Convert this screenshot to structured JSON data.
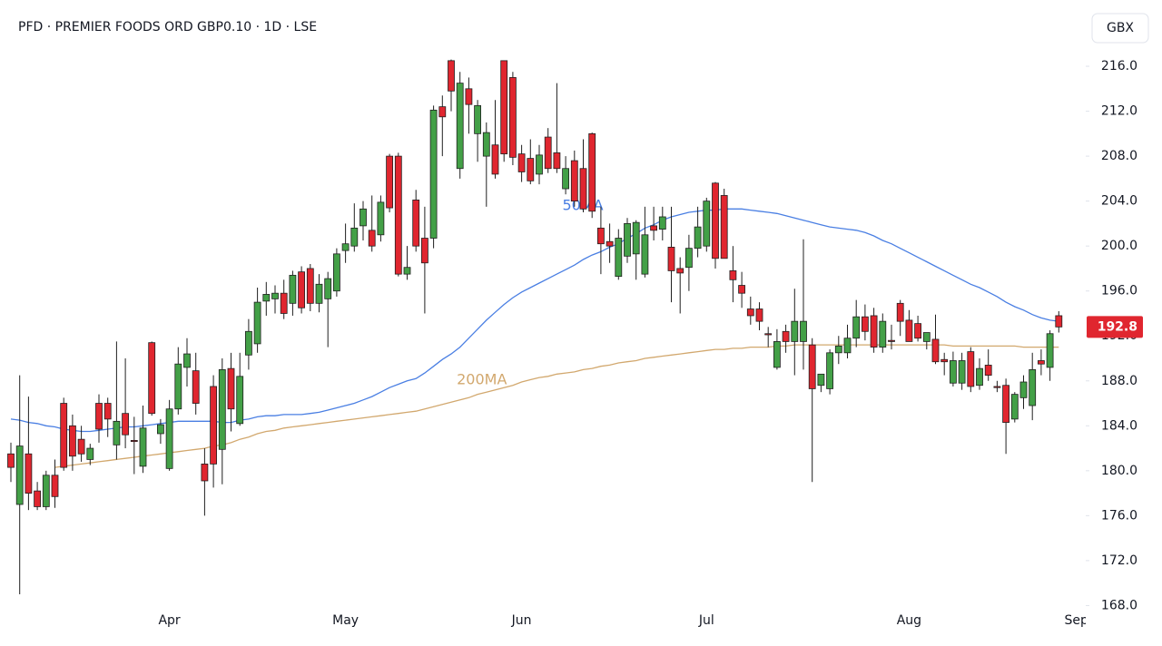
{
  "chart_data": {
    "type": "candlestick",
    "title": "PFD · PREMIER FOODS ORD GBP0.10 · 1D · LSE",
    "currency": "GBX",
    "up_color": "#43a047",
    "down_color": "#e0262f",
    "categories": [
      null,
      null,
      null,
      null,
      null,
      null,
      null,
      null,
      null,
      null,
      null,
      null,
      null,
      null,
      null,
      null,
      null,
      null,
      "Apr",
      null,
      null,
      null,
      null,
      null,
      null,
      null,
      null,
      null,
      null,
      null,
      null,
      null,
      null,
      null,
      null,
      null,
      null,
      null,
      "May",
      null,
      null,
      null,
      null,
      null,
      null,
      null,
      null,
      null,
      null,
      null,
      null,
      null,
      null,
      null,
      null,
      null,
      null,
      null,
      "Jun",
      null,
      null,
      null,
      null,
      null,
      null,
      null,
      null,
      null,
      null,
      null,
      null,
      null,
      null,
      null,
      null,
      null,
      null,
      null,
      null,
      "Jul",
      null,
      null,
      null,
      null,
      null,
      null,
      null,
      null,
      null,
      null,
      null,
      null,
      null,
      null,
      null,
      null,
      null,
      null,
      null,
      null,
      null,
      null,
      "Aug",
      null,
      null,
      null,
      null,
      null,
      null,
      null,
      null,
      null,
      null,
      null,
      null,
      null,
      null,
      null,
      null,
      null,
      null,
      "Sep"
    ],
    "open": [
      181.5,
      177,
      181.5,
      178.2,
      176.8,
      179.6,
      186,
      184,
      182.8,
      181,
      186,
      186,
      182.3,
      185.1,
      182.7,
      180.4,
      191.4,
      183.3,
      180.2,
      185.5,
      189.2,
      188.9,
      180.6,
      187.5,
      181.9,
      189.1,
      184.2,
      190.3,
      191.3,
      195.1,
      195.3,
      195.8,
      194.9,
      197.7,
      198,
      194.9,
      195.3,
      196,
      199.6,
      200,
      201.8,
      201.4,
      201,
      208,
      208,
      197.5,
      204.1,
      200.7,
      200.7,
      212.4,
      216.5,
      206.9,
      214,
      210,
      208,
      209,
      216.5,
      215,
      208.2,
      207.8,
      206.4,
      209.7,
      208.3,
      205.1,
      207.6,
      206.9,
      210,
      201.6,
      200.4,
      197.3,
      199.1,
      199.3,
      197.5,
      201.8,
      201.5,
      199.9,
      198,
      198.1,
      199.8,
      200,
      205.6,
      204.5,
      197.8,
      196.5,
      194.4,
      194.4,
      192.2,
      189.2,
      192.4,
      191.5,
      191.5,
      191.2,
      187.6,
      187.3,
      190.5,
      190.5,
      191.8,
      193.7,
      193.8,
      191,
      191.6,
      194.9,
      193.4,
      193.1,
      191.5,
      191.7,
      189.9,
      187.8,
      187.8,
      190.6,
      187.6,
      189.4,
      187.5,
      187.6,
      184.6,
      186.5,
      185.8,
      189.8,
      189.2,
      193.8,
      null,
      null
    ],
    "high": [
      182.5,
      188.5,
      186.6,
      179,
      180,
      181,
      186.5,
      185,
      184,
      182.4,
      186.8,
      186.5,
      191.5,
      190,
      184.8,
      185.8,
      191.5,
      184.6,
      186.3,
      191,
      191.8,
      190.5,
      182,
      188.5,
      190,
      190.5,
      190.5,
      193.5,
      196.3,
      196.8,
      196.5,
      197,
      197.8,
      198.2,
      198.4,
      197.5,
      197.7,
      199.8,
      202,
      203.8,
      204,
      204.5,
      204.5,
      208.2,
      208.3,
      200,
      205,
      203.5,
      212.5,
      213.4,
      216.6,
      215.5,
      215,
      213,
      211,
      213,
      216.5,
      215.5,
      209,
      209.5,
      209,
      210.5,
      214.5,
      208,
      208.5,
      209.5,
      210.1,
      203.5,
      202,
      201.5,
      202.5,
      202.3,
      203.5,
      203.5,
      203.5,
      203.5,
      199,
      201,
      203.5,
      204.3,
      205.7,
      205.1,
      200,
      197.7,
      195.5,
      195,
      192.8,
      192.6,
      193,
      196.2,
      200.6,
      191.8,
      188.6,
      190.8,
      192,
      193,
      195.2,
      194.8,
      194.5,
      194,
      193,
      195.2,
      194.3,
      193.8,
      192.2,
      193.9,
      190.5,
      190.6,
      190.5,
      191,
      190,
      190.8,
      188,
      188.2,
      187,
      188.5,
      190.5,
      190.8,
      192.5,
      194.2,
      null,
      null
    ],
    "low": [
      179,
      169,
      176.5,
      176.5,
      176.5,
      176.7,
      180,
      180,
      180.8,
      180.5,
      182.5,
      183,
      181,
      182,
      179.7,
      179.8,
      184.9,
      182.4,
      180,
      185,
      187.5,
      185,
      176,
      178.5,
      178.8,
      183.5,
      184,
      189,
      190.5,
      193.8,
      194,
      193.5,
      193.8,
      194,
      194.2,
      194.1,
      191,
      195.5,
      198.5,
      199.5,
      200.5,
      199.5,
      200.4,
      203,
      197.3,
      197,
      199.5,
      194,
      199.8,
      208,
      212,
      206,
      210,
      207.5,
      203.5,
      206,
      207.5,
      207.2,
      205.7,
      205.5,
      205.5,
      206.5,
      206.5,
      204.6,
      203.5,
      203,
      202.5,
      197.5,
      198.5,
      197,
      198.5,
      197,
      197.2,
      200.5,
      200.5,
      195,
      194,
      196,
      199,
      199.5,
      198,
      199,
      195,
      194.5,
      193,
      192.5,
      191,
      189,
      190.5,
      188.5,
      189,
      179,
      187,
      186.8,
      189.5,
      190,
      191,
      191.6,
      190.5,
      190.5,
      190.8,
      192,
      191.5,
      191.5,
      190.8,
      189.5,
      188.5,
      187.5,
      187.2,
      187,
      187.2,
      188,
      187,
      181.5,
      184.3,
      185.5,
      184.5,
      188.5,
      188,
      192.3,
      null,
      null
    ],
    "close": [
      180.3,
      182.2,
      178,
      176.8,
      179.6,
      177.7,
      180.3,
      181.3,
      181.5,
      182,
      183.7,
      184.6,
      184.4,
      183.2,
      182.6,
      183.8,
      185.1,
      184.1,
      185.5,
      189.5,
      190.4,
      186,
      179.1,
      180.6,
      189,
      185.5,
      188.4,
      192.4,
      195,
      195.7,
      195.8,
      194,
      197.4,
      194.5,
      194.9,
      196.6,
      197.1,
      199.3,
      200.2,
      201.6,
      203.3,
      200,
      203.9,
      203.4,
      197.5,
      198.1,
      200,
      198.5,
      212.1,
      211.5,
      213.8,
      214.5,
      212.6,
      212.5,
      210.1,
      206.4,
      208.2,
      207.9,
      206.6,
      205.8,
      208.1,
      206.9,
      206.9,
      206.9,
      204,
      203.3,
      203.1,
      200.2,
      200,
      200.7,
      202,
      202.1,
      201,
      201.4,
      202.6,
      197.8,
      197.6,
      199.8,
      201.7,
      204,
      198.9,
      198.9,
      197,
      195.8,
      193.8,
      193.3,
      192.1,
      191.5,
      191.5,
      193.3,
      193.3,
      187.3,
      188.6,
      190.5,
      191.1,
      191.8,
      193.7,
      192.4,
      191,
      193.3,
      191.5,
      193.3,
      191.5,
      191.8,
      192.3,
      189.7,
      189.7,
      189.8,
      189.8,
      187.5,
      189.1,
      188.5,
      187.4,
      184.3,
      186.8,
      187.9,
      189,
      189.5,
      192.2,
      192.8,
      null,
      null
    ],
    "ma": [
      {
        "name": "50MA",
        "color": "#4a7fe3",
        "values": [
          184.6,
          184.5,
          184.3,
          184.2,
          184.0,
          183.9,
          183.7,
          183.6,
          183.5,
          183.5,
          183.6,
          183.7,
          183.8,
          183.9,
          183.9,
          184.0,
          184.1,
          184.2,
          184.3,
          184.4,
          184.4,
          184.4,
          184.4,
          184.4,
          184.3,
          184.3,
          184.5,
          184.6,
          184.8,
          184.9,
          184.9,
          185.0,
          185.0,
          185.0,
          185.1,
          185.2,
          185.4,
          185.6,
          185.8,
          186.0,
          186.3,
          186.6,
          187.0,
          187.4,
          187.7,
          188.0,
          188.2,
          188.7,
          189.3,
          189.9,
          190.4,
          191.0,
          191.8,
          192.6,
          193.4,
          194.1,
          194.8,
          195.4,
          195.9,
          196.3,
          196.7,
          197.1,
          197.5,
          197.9,
          198.3,
          198.8,
          199.2,
          199.5,
          199.9,
          200.2,
          200.7,
          201.1,
          201.6,
          201.9,
          202.3,
          202.6,
          202.8,
          203.0,
          203.1,
          203.2,
          203.2,
          203.3,
          203.3,
          203.3,
          203.2,
          203.1,
          203.0,
          202.9,
          202.7,
          202.5,
          202.3,
          202.1,
          201.9,
          201.7,
          201.6,
          201.5,
          201.4,
          201.2,
          200.9,
          200.5,
          200.2,
          199.8,
          199.4,
          199.0,
          198.6,
          198.2,
          197.8,
          197.4,
          197.0,
          196.6,
          196.3,
          195.9,
          195.5,
          195.0,
          194.6,
          194.3,
          193.9,
          193.6,
          193.4,
          193.3,
          null,
          null
        ]
      },
      {
        "name": "200MA",
        "color": "#d2a86e",
        "values": [
          null,
          null,
          null,
          null,
          null,
          180.3,
          180.4,
          180.5,
          180.6,
          180.7,
          180.8,
          180.9,
          181.0,
          181.1,
          181.2,
          181.3,
          181.4,
          181.5,
          181.6,
          181.7,
          181.8,
          181.9,
          182.0,
          182.2,
          182.3,
          182.5,
          182.8,
          183.0,
          183.3,
          183.5,
          183.6,
          183.8,
          183.9,
          184.0,
          184.1,
          184.2,
          184.3,
          184.4,
          184.5,
          184.6,
          184.7,
          184.8,
          184.9,
          185.0,
          185.1,
          185.2,
          185.3,
          185.5,
          185.7,
          185.9,
          186.1,
          186.3,
          186.5,
          186.8,
          187.0,
          187.2,
          187.4,
          187.6,
          187.9,
          188.1,
          188.3,
          188.4,
          188.6,
          188.7,
          188.8,
          189.0,
          189.1,
          189.3,
          189.4,
          189.6,
          189.7,
          189.8,
          190.0,
          190.1,
          190.2,
          190.3,
          190.4,
          190.5,
          190.6,
          190.7,
          190.8,
          190.8,
          190.9,
          190.9,
          191.0,
          191.0,
          191.0,
          191.1,
          191.1,
          191.2,
          191.2,
          191.2,
          191.2,
          191.2,
          191.2,
          191.2,
          191.2,
          191.2,
          191.2,
          191.2,
          191.2,
          191.2,
          191.2,
          191.2,
          191.2,
          191.2,
          191.2,
          191.1,
          191.1,
          191.1,
          191.1,
          191.1,
          191.1,
          191.1,
          191.1,
          191.0,
          191.0,
          191.0,
          191.0,
          191.0,
          null,
          null
        ]
      }
    ],
    "ylim": [
      164.4,
      221.9
    ],
    "yticks": [
      {
        "value": 168,
        "label": "168.0"
      },
      {
        "value": 172,
        "label": "172.0"
      },
      {
        "value": 176,
        "label": "176.0"
      },
      {
        "value": 180,
        "label": "180.0"
      },
      {
        "value": 184,
        "label": "184.0"
      },
      {
        "value": 188,
        "label": "188.0"
      },
      {
        "value": 192,
        "label": "192.0"
      },
      {
        "value": 196,
        "label": "196.0"
      },
      {
        "value": 200,
        "label": "200.0"
      },
      {
        "value": 204,
        "label": "204.0"
      },
      {
        "value": 208,
        "label": "208.0"
      },
      {
        "value": 212,
        "label": "212.0"
      },
      {
        "value": 216,
        "label": "216.0"
      }
    ]
  }
}
